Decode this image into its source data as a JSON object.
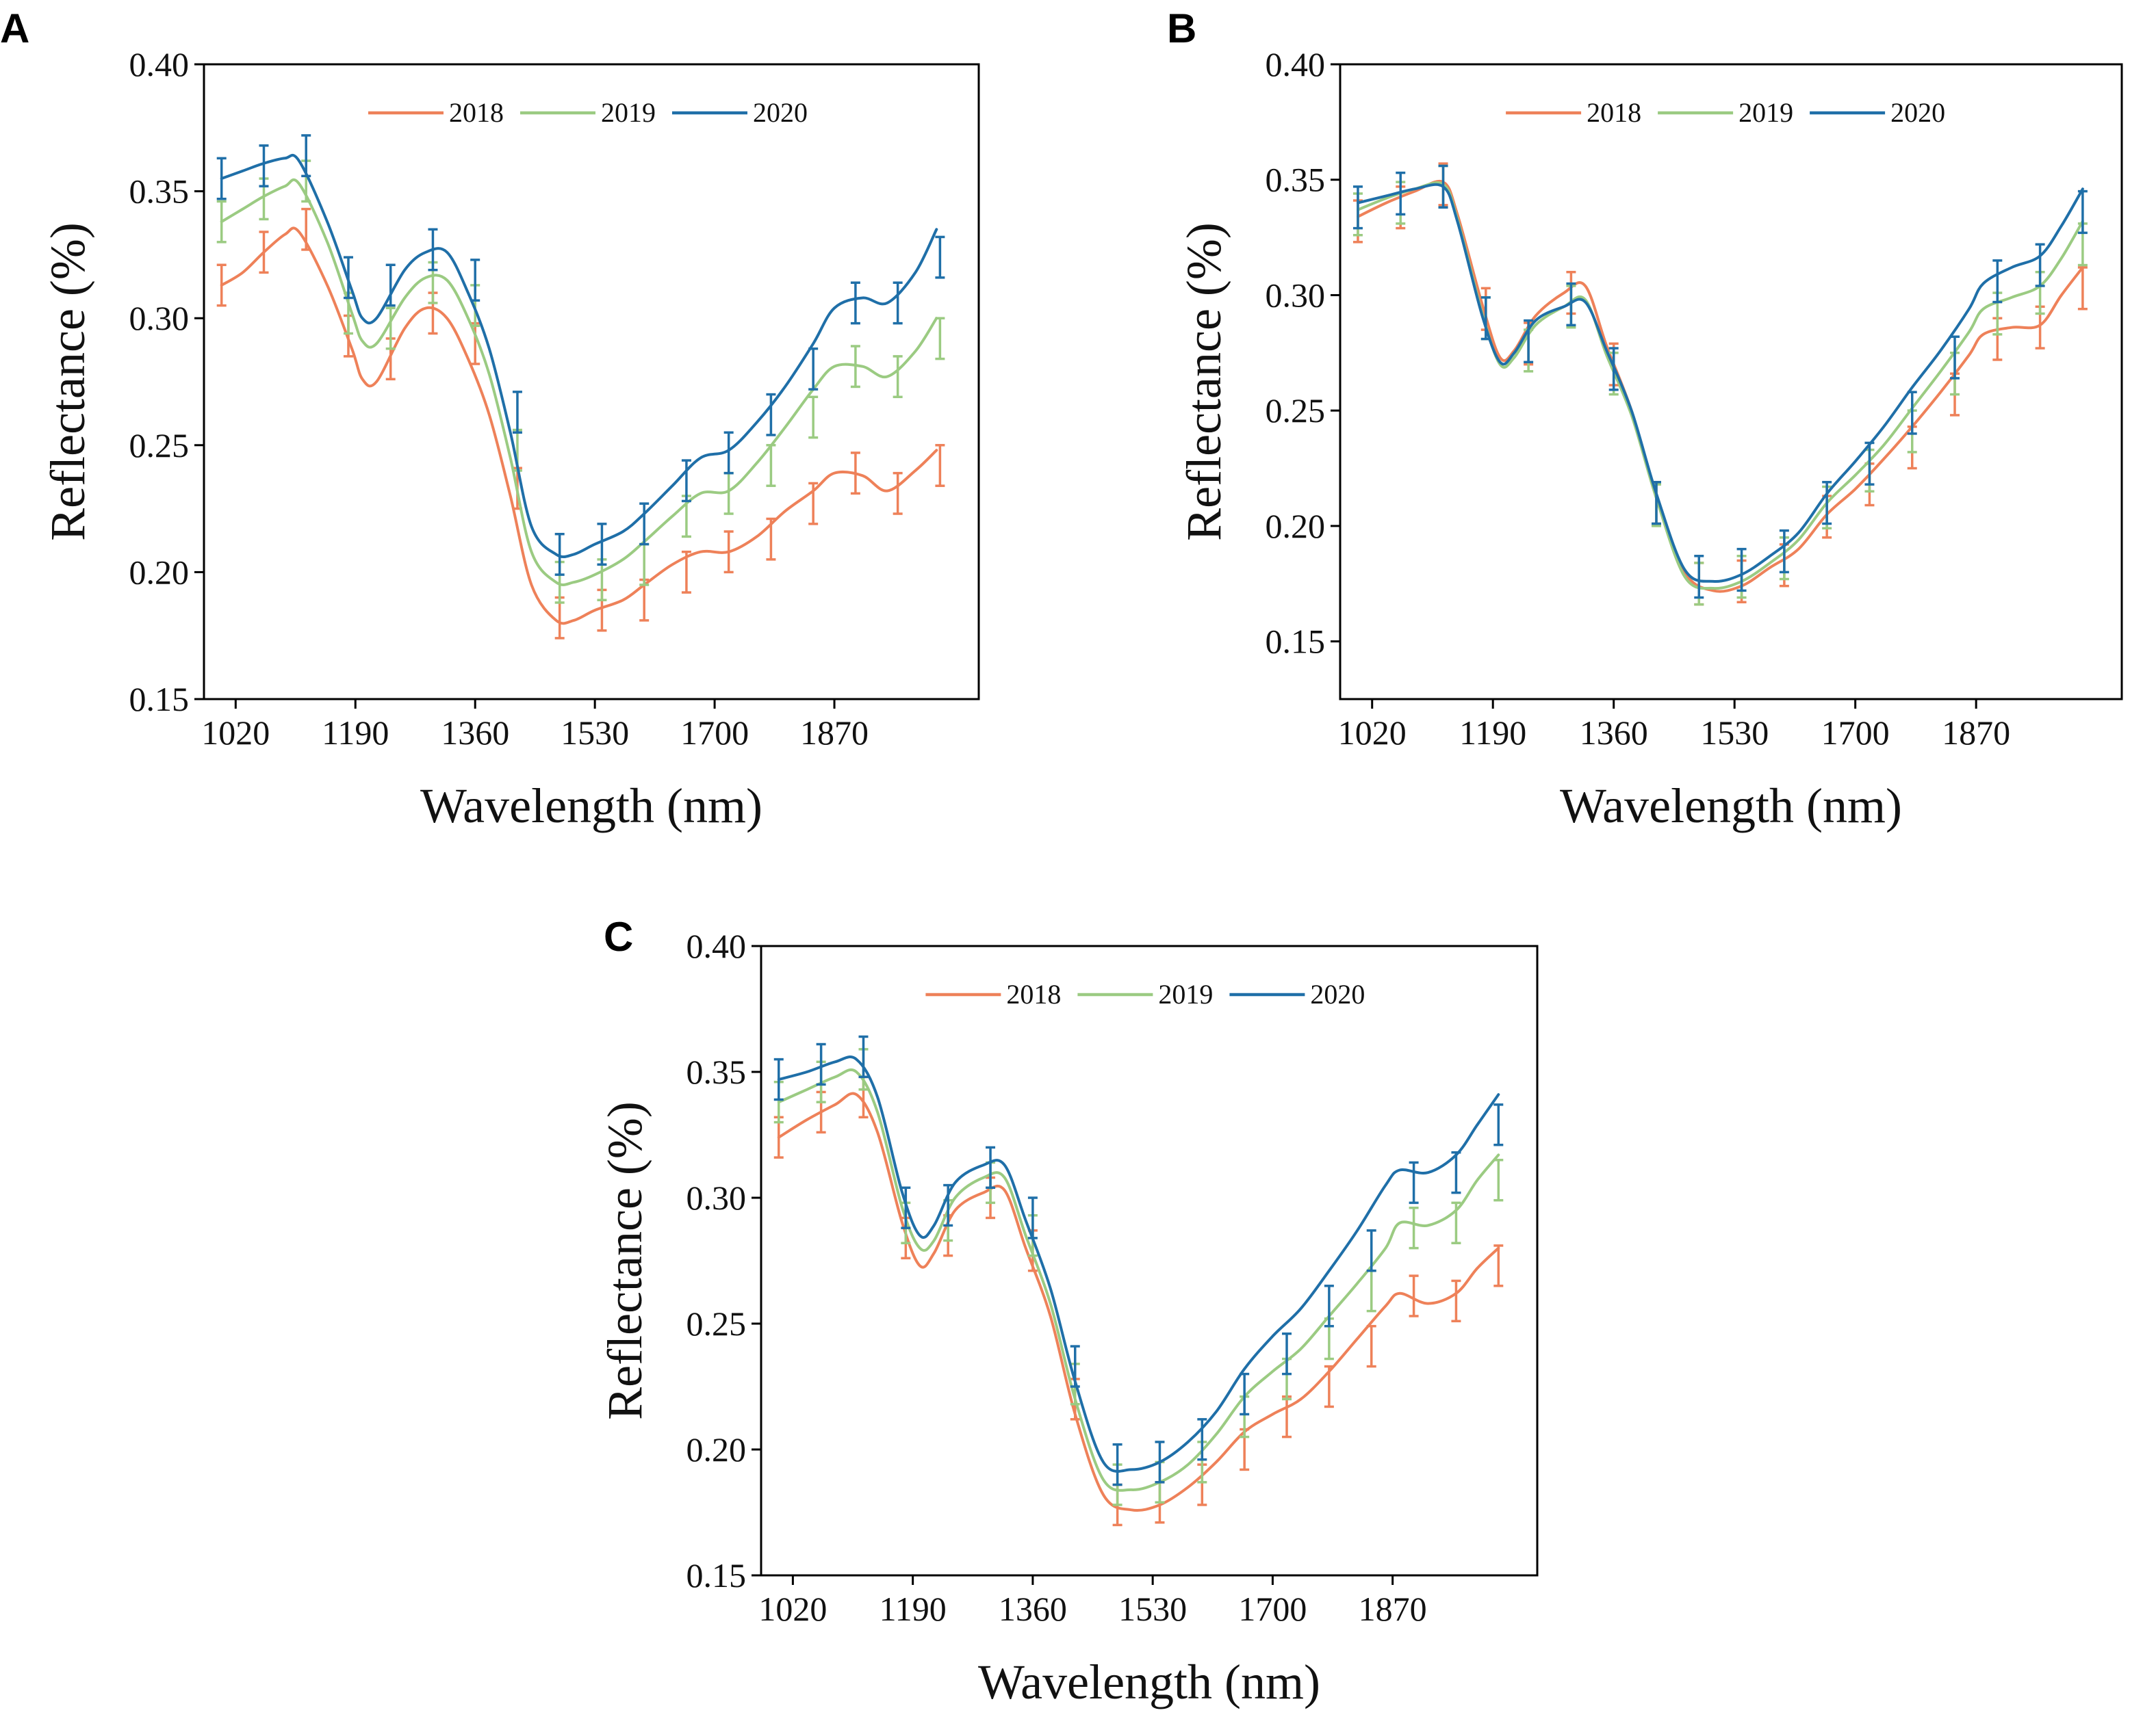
{
  "figure": {
    "series_colors": {
      "2018": "#EE8159",
      "2019": "#9BCB82",
      "2020": "#1F6FA8"
    }
  },
  "chart_data": [
    {
      "panel": "A",
      "type": "line",
      "xlabel": "Wavelength (nm)",
      "ylabel": "Reflectance (%)",
      "xlim": [
        975,
        2075
      ],
      "ylim": [
        0.15,
        0.4
      ],
      "xticks": [
        1020,
        1190,
        1360,
        1530,
        1700,
        1870
      ],
      "yticks": [
        "0.15",
        "0.20",
        "0.25",
        "0.30",
        "0.35",
        "0.40"
      ],
      "legend_position": "top-center",
      "series": [
        {
          "name": "2018",
          "x": [
            1000,
            1030,
            1060,
            1090,
            1110,
            1150,
            1185,
            1200,
            1220,
            1260,
            1290,
            1320,
            1350,
            1380,
            1410,
            1440,
            1475,
            1500,
            1530,
            1570,
            1600,
            1640,
            1680,
            1720,
            1760,
            1800,
            1840,
            1870,
            1910,
            1945,
            1985,
            2015
          ],
          "y": [
            0.313,
            0.318,
            0.326,
            0.333,
            0.334,
            0.313,
            0.288,
            0.276,
            0.275,
            0.296,
            0.304,
            0.3,
            0.284,
            0.262,
            0.23,
            0.195,
            0.181,
            0.181,
            0.185,
            0.189,
            0.195,
            0.203,
            0.208,
            0.208,
            0.214,
            0.224,
            0.232,
            0.239,
            0.238,
            0.232,
            0.24,
            0.248
          ],
          "error_x": [
            1000,
            1060,
            1120,
            1180,
            1240,
            1300,
            1360,
            1420,
            1480,
            1540,
            1600,
            1660,
            1720,
            1780,
            1840,
            1900,
            1960,
            2020
          ],
          "error_y": [
            0.313,
            0.326,
            0.335,
            0.293,
            0.284,
            0.302,
            0.29,
            0.233,
            0.182,
            0.185,
            0.189,
            0.2,
            0.208,
            0.213,
            0.227,
            0.239,
            0.231,
            0.242
          ],
          "error_size": 0.008
        },
        {
          "name": "2019",
          "x": [
            1000,
            1030,
            1060,
            1090,
            1110,
            1150,
            1185,
            1200,
            1220,
            1260,
            1290,
            1320,
            1350,
            1380,
            1410,
            1440,
            1475,
            1500,
            1530,
            1570,
            1600,
            1640,
            1680,
            1720,
            1760,
            1800,
            1840,
            1870,
            1910,
            1945,
            1985,
            2015
          ],
          "y": [
            0.338,
            0.343,
            0.348,
            0.352,
            0.353,
            0.33,
            0.302,
            0.291,
            0.29,
            0.308,
            0.316,
            0.315,
            0.3,
            0.278,
            0.245,
            0.208,
            0.196,
            0.196,
            0.199,
            0.205,
            0.212,
            0.222,
            0.231,
            0.232,
            0.243,
            0.257,
            0.272,
            0.281,
            0.281,
            0.277,
            0.287,
            0.3
          ],
          "error_x": [
            1000,
            1060,
            1120,
            1180,
            1240,
            1300,
            1360,
            1420,
            1480,
            1540,
            1600,
            1660,
            1720,
            1780,
            1840,
            1900,
            1960,
            2020
          ],
          "error_y": [
            0.338,
            0.347,
            0.354,
            0.302,
            0.296,
            0.314,
            0.305,
            0.248,
            0.196,
            0.197,
            0.203,
            0.222,
            0.231,
            0.242,
            0.261,
            0.281,
            0.277,
            0.292
          ],
          "error_size": 0.008
        },
        {
          "name": "2020",
          "x": [
            1000,
            1030,
            1060,
            1090,
            1110,
            1150,
            1185,
            1200,
            1220,
            1260,
            1290,
            1320,
            1350,
            1380,
            1410,
            1440,
            1475,
            1500,
            1530,
            1570,
            1600,
            1640,
            1680,
            1720,
            1760,
            1800,
            1840,
            1870,
            1910,
            1945,
            1985,
            2015
          ],
          "y": [
            0.355,
            0.358,
            0.361,
            0.363,
            0.362,
            0.338,
            0.311,
            0.3,
            0.3,
            0.319,
            0.326,
            0.326,
            0.31,
            0.288,
            0.255,
            0.218,
            0.207,
            0.207,
            0.211,
            0.216,
            0.223,
            0.234,
            0.245,
            0.248,
            0.259,
            0.273,
            0.29,
            0.304,
            0.308,
            0.306,
            0.318,
            0.335
          ],
          "error_x": [
            1000,
            1060,
            1120,
            1180,
            1240,
            1300,
            1360,
            1420,
            1480,
            1540,
            1600,
            1660,
            1720,
            1780,
            1840,
            1900,
            1960,
            2020
          ],
          "error_y": [
            0.355,
            0.36,
            0.364,
            0.316,
            0.313,
            0.327,
            0.315,
            0.263,
            0.207,
            0.211,
            0.219,
            0.236,
            0.247,
            0.262,
            0.28,
            0.306,
            0.306,
            0.324
          ],
          "error_size": 0.008
        }
      ]
    },
    {
      "panel": "B",
      "type": "line",
      "xlabel": "Wavelength (nm)",
      "ylabel": "Reflectance (%)",
      "xlim": [
        975,
        2075
      ],
      "ylim": [
        0.125,
        0.4
      ],
      "xticks": [
        1020,
        1190,
        1360,
        1530,
        1700,
        1870
      ],
      "yticks": [
        "0.15",
        "0.20",
        "0.25",
        "0.30",
        "0.35",
        "0.40"
      ],
      "legend_position": "top-center",
      "series": [
        {
          "name": "2018",
          "x": [
            1000,
            1040,
            1080,
            1120,
            1140,
            1175,
            1200,
            1220,
            1250,
            1290,
            1320,
            1350,
            1385,
            1420,
            1460,
            1500,
            1540,
            1580,
            1620,
            1660,
            1700,
            1740,
            1780,
            1820,
            1860,
            1880,
            1920,
            1960,
            1990,
            2020
          ],
          "y": [
            0.334,
            0.34,
            0.345,
            0.349,
            0.335,
            0.296,
            0.273,
            0.276,
            0.291,
            0.301,
            0.304,
            0.278,
            0.25,
            0.213,
            0.18,
            0.172,
            0.174,
            0.182,
            0.19,
            0.205,
            0.216,
            0.229,
            0.243,
            0.258,
            0.274,
            0.283,
            0.286,
            0.287,
            0.3,
            0.312
          ],
          "error_x": [
            1000,
            1060,
            1120,
            1180,
            1240,
            1300,
            1360,
            1420,
            1480,
            1540,
            1600,
            1660,
            1720,
            1780,
            1840,
            1900,
            1960,
            2020
          ],
          "error_y": [
            0.332,
            0.338,
            0.348,
            0.294,
            0.279,
            0.301,
            0.27,
            0.21,
            0.175,
            0.176,
            0.183,
            0.204,
            0.218,
            0.234,
            0.257,
            0.281,
            0.286,
            0.303
          ],
          "error_size": 0.009
        },
        {
          "name": "2019",
          "x": [
            1000,
            1040,
            1080,
            1120,
            1140,
            1175,
            1200,
            1220,
            1250,
            1290,
            1320,
            1350,
            1385,
            1420,
            1460,
            1500,
            1540,
            1580,
            1620,
            1660,
            1700,
            1740,
            1780,
            1820,
            1860,
            1880,
            1920,
            1960,
            1990,
            2020
          ],
          "y": [
            0.337,
            0.342,
            0.346,
            0.348,
            0.333,
            0.292,
            0.27,
            0.273,
            0.287,
            0.295,
            0.298,
            0.274,
            0.248,
            0.212,
            0.178,
            0.173,
            0.176,
            0.184,
            0.194,
            0.21,
            0.222,
            0.235,
            0.251,
            0.267,
            0.284,
            0.294,
            0.299,
            0.304,
            0.316,
            0.332
          ],
          "error_x": [
            1000,
            1060,
            1120,
            1180,
            1240,
            1300,
            1360,
            1420,
            1480,
            1540,
            1600,
            1660,
            1720,
            1780,
            1840,
            1900,
            1960,
            2020
          ],
          "error_y": [
            0.335,
            0.34,
            0.347,
            0.29,
            0.276,
            0.295,
            0.266,
            0.209,
            0.175,
            0.178,
            0.186,
            0.208,
            0.224,
            0.241,
            0.266,
            0.292,
            0.301,
            0.322
          ],
          "error_size": 0.009
        },
        {
          "name": "2020",
          "x": [
            1000,
            1040,
            1080,
            1120,
            1140,
            1175,
            1200,
            1220,
            1250,
            1290,
            1320,
            1350,
            1385,
            1420,
            1460,
            1500,
            1540,
            1580,
            1620,
            1660,
            1700,
            1740,
            1780,
            1820,
            1860,
            1880,
            1920,
            1960,
            1990,
            2020
          ],
          "y": [
            0.34,
            0.343,
            0.346,
            0.347,
            0.332,
            0.291,
            0.271,
            0.275,
            0.289,
            0.295,
            0.297,
            0.276,
            0.25,
            0.214,
            0.181,
            0.176,
            0.179,
            0.187,
            0.197,
            0.214,
            0.228,
            0.243,
            0.26,
            0.276,
            0.294,
            0.305,
            0.312,
            0.317,
            0.33,
            0.346
          ],
          "error_x": [
            1000,
            1060,
            1120,
            1180,
            1240,
            1300,
            1360,
            1420,
            1480,
            1540,
            1600,
            1660,
            1720,
            1780,
            1840,
            1900,
            1960,
            2020
          ],
          "error_y": [
            0.338,
            0.344,
            0.347,
            0.29,
            0.28,
            0.296,
            0.268,
            0.21,
            0.178,
            0.181,
            0.189,
            0.21,
            0.227,
            0.249,
            0.273,
            0.306,
            0.313,
            0.336
          ],
          "error_size": 0.009
        }
      ]
    },
    {
      "panel": "C",
      "type": "line",
      "xlabel": "Wavelength (nm)",
      "ylabel": "Reflectance (%)",
      "xlim": [
        975,
        2075
      ],
      "ylim": [
        0.15,
        0.4
      ],
      "xticks": [
        1020,
        1190,
        1360,
        1530,
        1700,
        1870
      ],
      "yticks": [
        "0.15",
        "0.20",
        "0.25",
        "0.30",
        "0.35",
        "0.40"
      ],
      "legend_position": "top-center",
      "series": [
        {
          "name": "2018",
          "x": [
            1000,
            1040,
            1080,
            1110,
            1140,
            1175,
            1200,
            1220,
            1250,
            1290,
            1320,
            1350,
            1385,
            1420,
            1460,
            1500,
            1540,
            1580,
            1620,
            1660,
            1700,
            1740,
            1780,
            1820,
            1860,
            1880,
            1920,
            1960,
            1990,
            2020
          ],
          "y": [
            0.324,
            0.331,
            0.337,
            0.341,
            0.326,
            0.29,
            0.273,
            0.278,
            0.295,
            0.302,
            0.303,
            0.28,
            0.253,
            0.214,
            0.182,
            0.176,
            0.178,
            0.185,
            0.195,
            0.207,
            0.214,
            0.22,
            0.231,
            0.244,
            0.257,
            0.262,
            0.258,
            0.262,
            0.272,
            0.28
          ],
          "error_x": [
            1000,
            1060,
            1120,
            1180,
            1240,
            1300,
            1360,
            1420,
            1480,
            1540,
            1600,
            1660,
            1720,
            1780,
            1840,
            1900,
            1960,
            2020
          ],
          "error_y": [
            0.324,
            0.334,
            0.34,
            0.284,
            0.285,
            0.3,
            0.279,
            0.22,
            0.178,
            0.179,
            0.186,
            0.2,
            0.213,
            0.225,
            0.241,
            0.261,
            0.259,
            0.273
          ],
          "error_size": 0.008
        },
        {
          "name": "2019",
          "x": [
            1000,
            1040,
            1080,
            1110,
            1140,
            1175,
            1200,
            1220,
            1250,
            1290,
            1320,
            1350,
            1385,
            1420,
            1460,
            1500,
            1540,
            1580,
            1620,
            1660,
            1700,
            1740,
            1780,
            1820,
            1860,
            1880,
            1920,
            1960,
            1990,
            2020
          ],
          "y": [
            0.338,
            0.343,
            0.348,
            0.35,
            0.334,
            0.296,
            0.28,
            0.283,
            0.3,
            0.308,
            0.308,
            0.285,
            0.258,
            0.22,
            0.188,
            0.184,
            0.187,
            0.194,
            0.206,
            0.221,
            0.231,
            0.24,
            0.253,
            0.266,
            0.28,
            0.29,
            0.289,
            0.295,
            0.307,
            0.317
          ],
          "error_x": [
            1000,
            1060,
            1120,
            1180,
            1240,
            1300,
            1360,
            1420,
            1480,
            1540,
            1600,
            1660,
            1720,
            1780,
            1840,
            1900,
            1960,
            2020
          ],
          "error_y": [
            0.338,
            0.346,
            0.351,
            0.29,
            0.291,
            0.306,
            0.285,
            0.226,
            0.186,
            0.187,
            0.195,
            0.213,
            0.228,
            0.244,
            0.263,
            0.288,
            0.29,
            0.307
          ],
          "error_size": 0.008
        },
        {
          "name": "2020",
          "x": [
            1000,
            1040,
            1080,
            1110,
            1140,
            1175,
            1200,
            1220,
            1250,
            1290,
            1320,
            1350,
            1385,
            1420,
            1460,
            1500,
            1540,
            1580,
            1620,
            1660,
            1700,
            1740,
            1780,
            1820,
            1860,
            1880,
            1920,
            1960,
            1990,
            2020
          ],
          "y": [
            0.347,
            0.35,
            0.354,
            0.355,
            0.34,
            0.302,
            0.285,
            0.289,
            0.306,
            0.313,
            0.313,
            0.291,
            0.264,
            0.227,
            0.195,
            0.192,
            0.195,
            0.203,
            0.215,
            0.232,
            0.245,
            0.256,
            0.271,
            0.287,
            0.305,
            0.311,
            0.31,
            0.317,
            0.329,
            0.341
          ],
          "error_x": [
            1000,
            1060,
            1120,
            1180,
            1240,
            1300,
            1360,
            1420,
            1480,
            1540,
            1600,
            1660,
            1720,
            1780,
            1840,
            1900,
            1960,
            2020
          ],
          "error_y": [
            0.347,
            0.353,
            0.356,
            0.296,
            0.297,
            0.312,
            0.292,
            0.233,
            0.194,
            0.195,
            0.204,
            0.222,
            0.238,
            0.257,
            0.279,
            0.306,
            0.31,
            0.329
          ],
          "error_size": 0.008
        }
      ]
    }
  ]
}
